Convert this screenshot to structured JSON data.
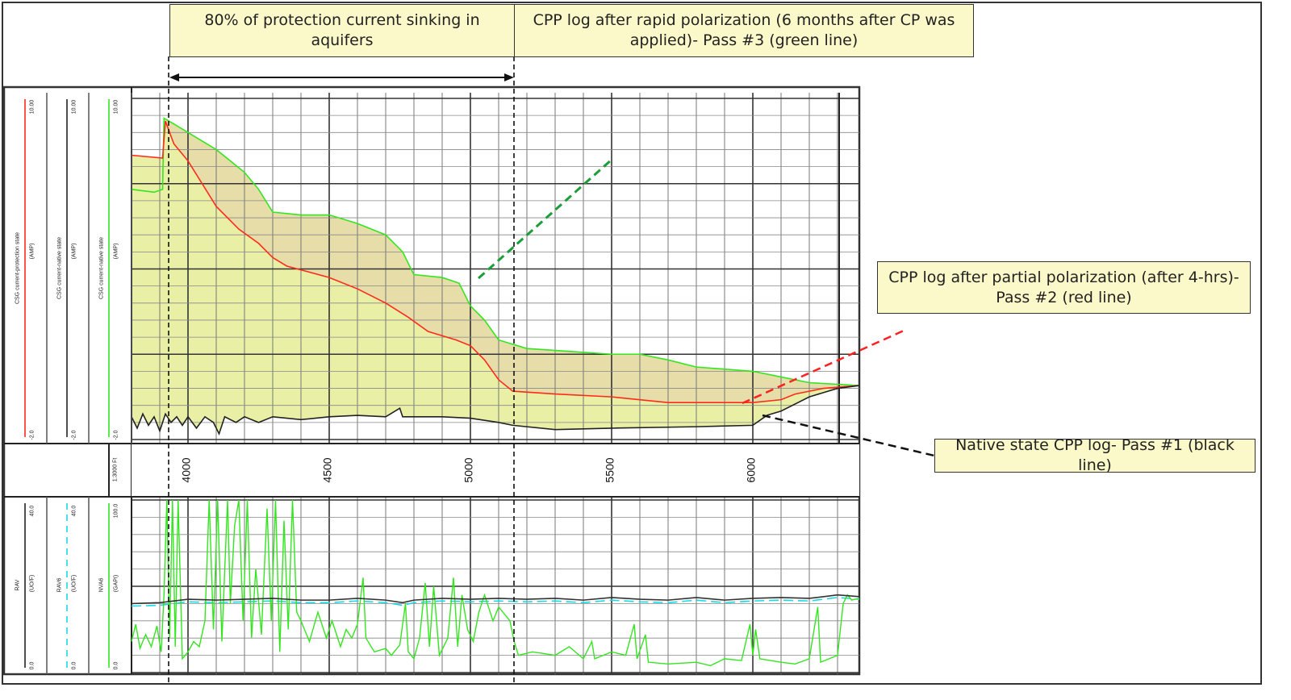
{
  "annotations": {
    "aquifer": "80% of protection current sinking in aquifers",
    "pass3": "CPP log after rapid polarization (6 months after CP was applied)- Pass #3 (green line)",
    "pass2": "CPP log after partial polarization (after 4-hrs)- Pass #2 (red line)",
    "pass1": "Native state CPP log- Pass #1 (black line)"
  },
  "colors": {
    "pass1": "#222222",
    "pass2": "#ff2a1a",
    "pass3": "#33e61f",
    "fill": "#e9f0a6",
    "cyan": "#19d9e6",
    "box": "#fbf9c9"
  },
  "headers": {
    "top": [
      {
        "name": "CSG current-protection state",
        "unit": "(AMP)",
        "min": "-2.0",
        "max": "10.00",
        "color": "#ff2a1a"
      },
      {
        "name": "CSG current-native state",
        "unit": "(AMP)",
        "min": "-2.0",
        "max": "10.00",
        "color": "#222222"
      },
      {
        "name": "CSG current-native state",
        "unit": "(AMP)",
        "min": "-2.0",
        "max": "10.00",
        "color": "#33e61f"
      }
    ],
    "scale": "1:3000 Ft",
    "bottom": [
      {
        "name": "RAV",
        "unit": "(UO/F)",
        "min": "0.0",
        "max": "40.0",
        "color": "#222222"
      },
      {
        "name": "RAV6",
        "unit": "(UO/F)",
        "min": "0.0",
        "max": "40.0",
        "color": "#19d9e6"
      },
      {
        "name": "NVA6",
        "unit": "(GAPI)",
        "min": "0.0",
        "max": "100.0",
        "color": "#33e61f"
      }
    ]
  },
  "chart_data": {
    "type": "line",
    "depth_ticks": [
      "4000",
      "4500",
      "5000",
      "5500",
      "6000"
    ],
    "depth_range": [
      3800,
      6377
    ],
    "top_track": {
      "ylim": [
        -2,
        10
      ],
      "series": [
        {
          "name": "Pass #3",
          "points": [
            [
              3800,
              6.8
            ],
            [
              3880,
              6.7
            ],
            [
              3910,
              6.8
            ],
            [
              3915,
              9.3
            ],
            [
              3950,
              9.1
            ],
            [
              4000,
              8.8
            ],
            [
              4100,
              8.2
            ],
            [
              4200,
              7.4
            ],
            [
              4250,
              6.8
            ],
            [
              4300,
              6.0
            ],
            [
              4400,
              5.9
            ],
            [
              4500,
              5.9
            ],
            [
              4600,
              5.6
            ],
            [
              4700,
              5.2
            ],
            [
              4760,
              4.6
            ],
            [
              4800,
              3.8
            ],
            [
              4900,
              3.7
            ],
            [
              4960,
              3.5
            ],
            [
              5000,
              2.7
            ],
            [
              5050,
              2.2
            ],
            [
              5100,
              1.5
            ],
            [
              5200,
              1.2
            ],
            [
              5350,
              1.1
            ],
            [
              5500,
              1.0
            ],
            [
              5600,
              1.0
            ],
            [
              5700,
              0.8
            ],
            [
              5800,
              0.55
            ],
            [
              6000,
              0.4
            ],
            [
              6100,
              0.2
            ],
            [
              6200,
              0.0
            ],
            [
              6377,
              -0.1
            ]
          ]
        },
        {
          "name": "Pass #2",
          "points": [
            [
              3800,
              8.0
            ],
            [
              3910,
              7.9
            ],
            [
              3920,
              9.2
            ],
            [
              3950,
              8.4
            ],
            [
              4000,
              7.8
            ],
            [
              4050,
              7.0
            ],
            [
              4100,
              6.2
            ],
            [
              4180,
              5.4
            ],
            [
              4250,
              4.9
            ],
            [
              4300,
              4.4
            ],
            [
              4350,
              4.1
            ],
            [
              4500,
              3.7
            ],
            [
              4600,
              3.3
            ],
            [
              4700,
              2.8
            ],
            [
              4780,
              2.3
            ],
            [
              4850,
              1.8
            ],
            [
              4950,
              1.5
            ],
            [
              5000,
              1.3
            ],
            [
              5050,
              0.8
            ],
            [
              5100,
              0.1
            ],
            [
              5150,
              -0.3
            ],
            [
              5300,
              -0.4
            ],
            [
              5500,
              -0.5
            ],
            [
              5600,
              -0.6
            ],
            [
              5700,
              -0.7
            ],
            [
              6000,
              -0.7
            ],
            [
              6100,
              -0.6
            ],
            [
              6150,
              -0.4
            ],
            [
              6250,
              -0.2
            ],
            [
              6377,
              -0.1
            ]
          ]
        },
        {
          "name": "Pass #1",
          "points": [
            [
              3800,
              -1.2
            ],
            [
              3820,
              -1.6
            ],
            [
              3840,
              -1.1
            ],
            [
              3860,
              -1.5
            ],
            [
              3880,
              -1.2
            ],
            [
              3900,
              -1.7
            ],
            [
              3920,
              -1.1
            ],
            [
              3940,
              -1.4
            ],
            [
              3960,
              -1.2
            ],
            [
              3980,
              -1.5
            ],
            [
              4000,
              -1.2
            ],
            [
              4030,
              -1.6
            ],
            [
              4060,
              -1.2
            ],
            [
              4090,
              -1.4
            ],
            [
              4110,
              -1.8
            ],
            [
              4130,
              -1.2
            ],
            [
              4170,
              -1.4
            ],
            [
              4200,
              -1.2
            ],
            [
              4250,
              -1.4
            ],
            [
              4300,
              -1.2
            ],
            [
              4400,
              -1.3
            ],
            [
              4500,
              -1.2
            ],
            [
              4600,
              -1.15
            ],
            [
              4700,
              -1.2
            ],
            [
              4750,
              -0.9
            ],
            [
              4760,
              -1.2
            ],
            [
              4900,
              -1.2
            ],
            [
              5000,
              -1.25
            ],
            [
              5100,
              -1.4
            ],
            [
              5150,
              -1.5
            ],
            [
              5300,
              -1.65
            ],
            [
              5500,
              -1.6
            ],
            [
              5800,
              -1.55
            ],
            [
              6000,
              -1.5
            ],
            [
              6050,
              -1.15
            ],
            [
              6100,
              -1.0
            ],
            [
              6200,
              -0.5
            ],
            [
              6300,
              -0.2
            ],
            [
              6377,
              -0.1
            ]
          ]
        }
      ]
    },
    "bottom_track": {
      "ylim": [
        0,
        100
      ],
      "series": [
        {
          "name": "NVA6",
          "points": [
            [
              3800,
              18
            ],
            [
              3815,
              28
            ],
            [
              3830,
              14
            ],
            [
              3850,
              22
            ],
            [
              3870,
              15
            ],
            [
              3890,
              27
            ],
            [
              3905,
              12
            ],
            [
              3915,
              45
            ],
            [
              3925,
              100
            ],
            [
              3935,
              20
            ],
            [
              3945,
              100
            ],
            [
              3955,
              15
            ],
            [
              3965,
              100
            ],
            [
              3980,
              8
            ],
            [
              4000,
              12
            ],
            [
              4020,
              18
            ],
            [
              4040,
              15
            ],
            [
              4060,
              30
            ],
            [
              4075,
              100
            ],
            [
              4090,
              25
            ],
            [
              4105,
              100
            ],
            [
              4120,
              18
            ],
            [
              4140,
              100
            ],
            [
              4150,
              40
            ],
            [
              4165,
              85
            ],
            [
              4180,
              100
            ],
            [
              4195,
              30
            ],
            [
              4210,
              100
            ],
            [
              4225,
              20
            ],
            [
              4240,
              60
            ],
            [
              4260,
              22
            ],
            [
              4280,
              95
            ],
            [
              4295,
              30
            ],
            [
              4310,
              100
            ],
            [
              4325,
              12
            ],
            [
              4340,
              88
            ],
            [
              4355,
              25
            ],
            [
              4370,
              100
            ],
            [
              4385,
              35
            ],
            [
              4400,
              30
            ],
            [
              4430,
              18
            ],
            [
              4460,
              35
            ],
            [
              4490,
              20
            ],
            [
              4510,
              30
            ],
            [
              4540,
              15
            ],
            [
              4560,
              25
            ],
            [
              4580,
              20
            ],
            [
              4600,
              28
            ],
            [
              4620,
              55
            ],
            [
              4630,
              20
            ],
            [
              4660,
              12
            ],
            [
              4700,
              14
            ],
            [
              4720,
              10
            ],
            [
              4750,
              16
            ],
            [
              4770,
              40
            ],
            [
              4780,
              12
            ],
            [
              4800,
              8
            ],
            [
              4820,
              20
            ],
            [
              4840,
              52
            ],
            [
              4855,
              15
            ],
            [
              4870,
              50
            ],
            [
              4890,
              10
            ],
            [
              4920,
              20
            ],
            [
              4940,
              55
            ],
            [
              4955,
              15
            ],
            [
              4970,
              45
            ],
            [
              4990,
              25
            ],
            [
              5010,
              18
            ],
            [
              5030,
              35
            ],
            [
              5050,
              45
            ],
            [
              5080,
              30
            ],
            [
              5100,
              38
            ],
            [
              5140,
              30
            ],
            [
              5155,
              18
            ],
            [
              5170,
              10
            ],
            [
              5220,
              12
            ],
            [
              5300,
              10
            ],
            [
              5350,
              15
            ],
            [
              5400,
              8
            ],
            [
              5430,
              18
            ],
            [
              5440,
              8
            ],
            [
              5500,
              12
            ],
            [
              5550,
              10
            ],
            [
              5580,
              28
            ],
            [
              5590,
              8
            ],
            [
              5620,
              22
            ],
            [
              5630,
              6
            ],
            [
              5700,
              5
            ],
            [
              5800,
              6
            ],
            [
              5850,
              4
            ],
            [
              5900,
              8
            ],
            [
              5960,
              7
            ],
            [
              5990,
              28
            ],
            [
              6000,
              10
            ],
            [
              6010,
              25
            ],
            [
              6025,
              8
            ],
            [
              6100,
              6
            ],
            [
              6150,
              5
            ],
            [
              6200,
              8
            ],
            [
              6230,
              38
            ],
            [
              6240,
              6
            ],
            [
              6300,
              10
            ],
            [
              6320,
              40
            ],
            [
              6335,
              45
            ],
            [
              6350,
              42
            ],
            [
              6377,
              43
            ]
          ]
        },
        {
          "name": "RAV",
          "points": [
            [
              3800,
              40
            ],
            [
              3900,
              40.5
            ],
            [
              3950,
              41.5
            ],
            [
              4000,
              42.5
            ],
            [
              4100,
              42
            ],
            [
              4200,
              42.5
            ],
            [
              4300,
              43
            ],
            [
              4400,
              42
            ],
            [
              4500,
              42
            ],
            [
              4600,
              43
            ],
            [
              4700,
              42
            ],
            [
              4760,
              40.5
            ],
            [
              4800,
              42
            ],
            [
              4900,
              43
            ],
            [
              5000,
              42.5
            ],
            [
              5100,
              43
            ],
            [
              5200,
              42.5
            ],
            [
              5300,
              43
            ],
            [
              5400,
              42
            ],
            [
              5500,
              43.5
            ],
            [
              5600,
              42.5
            ],
            [
              5700,
              42
            ],
            [
              5800,
              43.5
            ],
            [
              5900,
              42
            ],
            [
              6000,
              43
            ],
            [
              6100,
              43.5
            ],
            [
              6200,
              43
            ],
            [
              6300,
              45
            ],
            [
              6377,
              44
            ]
          ]
        }
      ]
    }
  }
}
